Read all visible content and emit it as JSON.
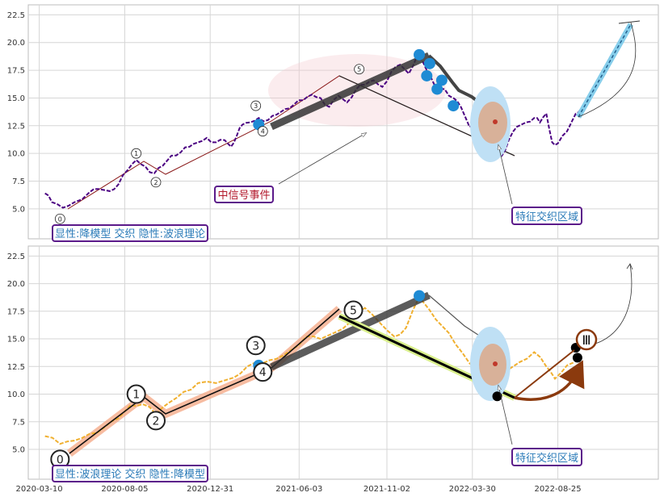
{
  "chart_data": [
    {
      "type": "line",
      "panel": "top",
      "ylim": [
        2.3,
        23.4
      ],
      "xlim": [
        "2020-02-20",
        "2023-02-15"
      ],
      "yticks": [
        "5.0",
        "7.5",
        "10.0",
        "12.5",
        "15.0",
        "17.5",
        "20.0",
        "22.5"
      ],
      "ytick_values": [
        5,
        7.5,
        10,
        12.5,
        15,
        17.5,
        20,
        22.5
      ],
      "grid": true,
      "series": [
        {
          "color": "#4b0082",
          "style": "dashed",
          "points": [
            [
              "2020-03-20",
              6.4
            ],
            [
              "2020-04-01",
              5.6
            ],
            [
              "2020-04-20",
              5.1
            ],
            [
              "2020-05-10",
              5.6
            ],
            [
              "2020-06-05",
              6.5
            ],
            [
              "2020-06-20",
              6.8
            ],
            [
              "2020-07-10",
              6.6
            ],
            [
              "2020-07-25",
              7.2
            ],
            [
              "2020-08-10",
              8.5
            ],
            [
              "2020-08-25",
              9.4
            ],
            [
              "2020-09-10",
              8.8
            ],
            [
              "2020-09-25",
              8.2
            ],
            [
              "2020-10-10",
              8.9
            ],
            [
              "2020-10-25",
              9.8
            ],
            [
              "2020-11-10",
              10.1
            ],
            [
              "2020-11-25",
              10.6
            ],
            [
              "2020-12-10",
              11.0
            ],
            [
              "2020-12-25",
              11.4
            ],
            [
              "2021-01-10",
              11.0
            ],
            [
              "2021-01-25",
              11.2
            ],
            [
              "2021-02-05",
              10.6
            ],
            [
              "2021-02-15",
              11.6
            ],
            [
              "2021-02-25",
              12.6
            ],
            [
              "2021-03-10",
              12.8
            ],
            [
              "2021-03-25",
              13.2
            ],
            [
              "2021-04-10",
              13.0
            ],
            [
              "2021-04-25",
              13.5
            ],
            [
              "2021-05-10",
              14.0
            ],
            [
              "2021-05-25",
              14.4
            ],
            [
              "2021-06-10",
              14.8
            ],
            [
              "2021-06-25",
              15.3
            ],
            [
              "2021-07-10",
              15.0
            ],
            [
              "2021-07-25",
              14.2
            ],
            [
              "2021-08-10",
              15.2
            ],
            [
              "2021-08-25",
              14.6
            ],
            [
              "2021-09-10",
              15.8
            ],
            [
              "2021-09-25",
              16.2
            ],
            [
              "2021-10-10",
              16.6
            ],
            [
              "2021-10-25",
              16.0
            ],
            [
              "2021-11-10",
              17.4
            ],
            [
              "2021-11-25",
              18.0
            ],
            [
              "2021-12-10",
              17.2
            ],
            [
              "2021-12-25",
              18.9
            ],
            [
              "2022-01-10",
              17.5
            ],
            [
              "2022-01-25",
              16.0
            ],
            [
              "2022-02-10",
              15.8
            ],
            [
              "2022-02-25",
              15.0
            ],
            [
              "2022-03-10",
              14.2
            ],
            [
              "2022-03-25",
              12.4
            ],
            [
              "2022-04-10",
              12.9
            ],
            [
              "2022-04-25",
              11.6
            ],
            [
              "2022-05-10",
              10.5
            ],
            [
              "2022-05-20",
              9.8
            ],
            [
              "2022-06-01",
              11.2
            ],
            [
              "2022-06-15",
              12.4
            ],
            [
              "2022-07-01",
              12.8
            ],
            [
              "2022-07-15",
              13.2
            ],
            [
              "2022-07-25",
              12.8
            ],
            [
              "2022-08-05",
              13.6
            ],
            [
              "2022-08-15",
              11.0
            ],
            [
              "2022-08-25",
              10.9
            ],
            [
              "2022-09-10",
              12.0
            ],
            [
              "2022-09-25",
              13.6
            ],
            [
              "2022-10-05",
              14.1
            ]
          ]
        }
      ],
      "labels": {
        "legend": "显性:降模型 交织 隐性:波浪理论",
        "event": "中信号事件",
        "region": "特征交织区域"
      },
      "wave_labels": [
        {
          "text": "0",
          "x": "2020-04-15",
          "y": 4.1
        },
        {
          "text": "1",
          "x": "2020-08-25",
          "y": 10.0
        },
        {
          "text": "2",
          "x": "2020-09-28",
          "y": 7.4
        },
        {
          "text": "3",
          "x": "2021-03-20",
          "y": 14.3
        },
        {
          "text": "4",
          "x": "2021-04-01",
          "y": 12.0
        },
        {
          "text": "5",
          "x": "2021-09-15",
          "y": 17.6
        }
      ]
    },
    {
      "type": "line",
      "panel": "bottom",
      "ylim": [
        2.3,
        23.4
      ],
      "xlim": [
        "2020-02-20",
        "2023-02-15"
      ],
      "yticks": [
        "5.0",
        "7.5",
        "10.0",
        "12.5",
        "15.0",
        "17.5",
        "20.0",
        "22.5"
      ],
      "ytick_values": [
        5,
        7.5,
        10,
        12.5,
        15,
        17.5,
        20,
        22.5
      ],
      "xticks": [
        "2020-03-10",
        "2020-08-05",
        "2020-12-31",
        "2021-06-03",
        "2021-11-02",
        "2022-03-30",
        "2022-08-25"
      ],
      "grid": true,
      "series": [
        {
          "color": "#f0b030",
          "style": "dashed",
          "points": [
            [
              "2020-03-20",
              6.2
            ],
            [
              "2020-04-15",
              5.5
            ],
            [
              "2020-05-10",
              5.8
            ],
            [
              "2020-06-05",
              6.4
            ],
            [
              "2020-07-01",
              7.0
            ],
            [
              "2020-07-25",
              7.8
            ],
            [
              "2020-08-15",
              9.0
            ],
            [
              "2020-09-05",
              9.1
            ],
            [
              "2020-09-28",
              8.2
            ],
            [
              "2020-10-20",
              9.2
            ],
            [
              "2020-11-15",
              10.2
            ],
            [
              "2020-12-10",
              11.0
            ],
            [
              "2021-01-10",
              11.0
            ],
            [
              "2021-02-10",
              11.5
            ],
            [
              "2021-03-05",
              12.5
            ],
            [
              "2021-04-01",
              12.8
            ],
            [
              "2021-04-25",
              13.2
            ],
            [
              "2021-05-20",
              14.0
            ],
            [
              "2021-06-15",
              15.2
            ],
            [
              "2021-07-10",
              15.0
            ],
            [
              "2021-08-05",
              15.6
            ],
            [
              "2021-08-30",
              16.5
            ],
            [
              "2021-09-25",
              17.8
            ],
            [
              "2021-10-20",
              16.5
            ],
            [
              "2021-11-15",
              15.2
            ],
            [
              "2021-12-05",
              16.0
            ],
            [
              "2021-12-28",
              18.8
            ],
            [
              "2022-01-15",
              17.6
            ],
            [
              "2022-02-05",
              16.2
            ],
            [
              "2022-03-01",
              14.5
            ],
            [
              "2022-03-25",
              12.8
            ],
            [
              "2022-04-15",
              12.0
            ],
            [
              "2022-05-10",
              10.5
            ],
            [
              "2022-05-25",
              12.0
            ],
            [
              "2022-06-20",
              12.9
            ],
            [
              "2022-07-15",
              13.8
            ],
            [
              "2022-08-05",
              12.5
            ],
            [
              "2022-08-20",
              11.4
            ],
            [
              "2022-09-10",
              12.6
            ],
            [
              "2022-10-01",
              13.5
            ]
          ]
        }
      ],
      "labels": {
        "legend": "显性:波浪理论 交织 隐性:降模型",
        "region": "特征交织区域",
        "marker": "Ⅲ"
      },
      "wave_labels": [
        {
          "text": "0",
          "x": "2020-04-15",
          "y": 4.1
        },
        {
          "text": "1",
          "x": "2020-08-25",
          "y": 10.0
        },
        {
          "text": "2",
          "x": "2020-09-28",
          "y": 7.6
        },
        {
          "text": "3",
          "x": "2021-03-20",
          "y": 14.4
        },
        {
          "text": "4",
          "x": "2021-04-01",
          "y": 12.0
        },
        {
          "text": "5",
          "x": "2021-09-05",
          "y": 17.6
        }
      ]
    }
  ],
  "colors": {
    "purple_series": "#4b0082",
    "orange_series": "#f0b030",
    "marker_blue": "#1f8bd4",
    "box_edge": "#5b1a8a",
    "box_text": "#2a7ab8",
    "event_text": "#b2182b",
    "arrow_brown": "#8b3a0e"
  }
}
